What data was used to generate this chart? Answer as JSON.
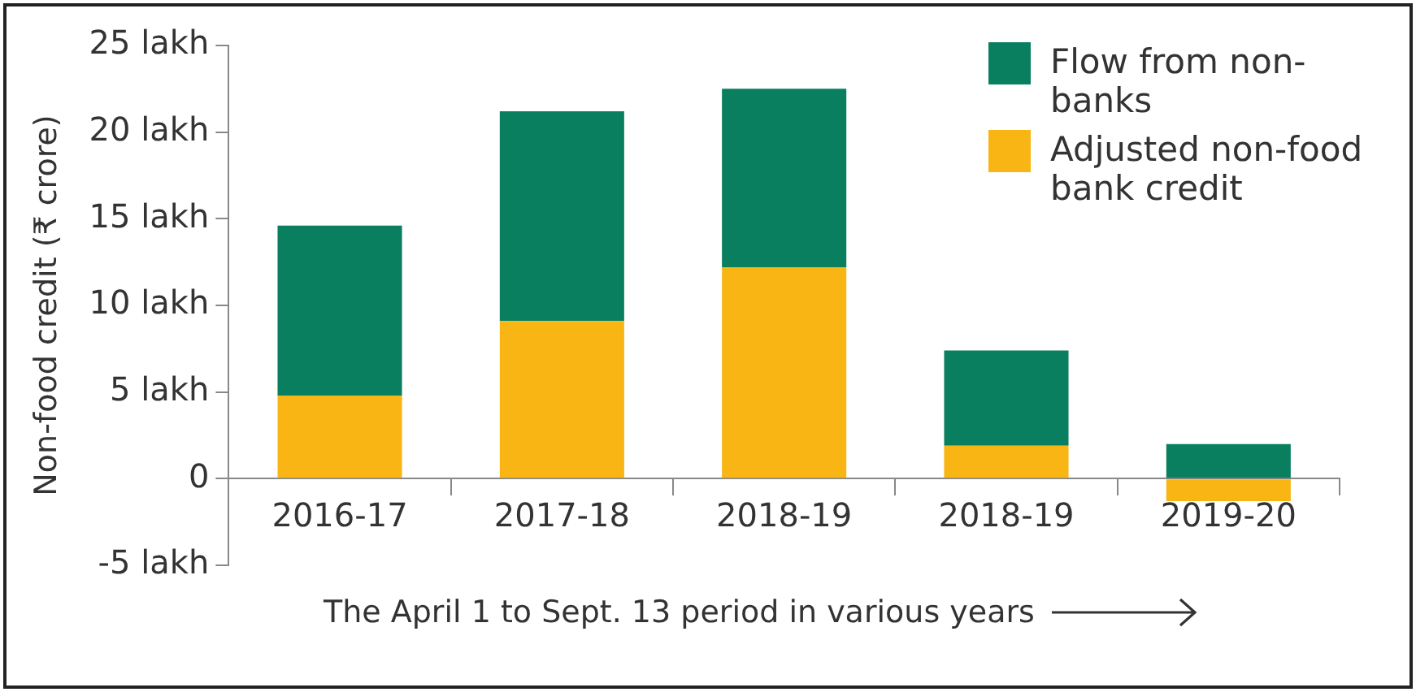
{
  "chart_data": {
    "type": "bar",
    "stacked": true,
    "ylabel": "Non-food credit (₹ crore)",
    "xlabel": "The April 1 to Sept. 13 period in various years",
    "categories": [
      "2016-17",
      "2017-18",
      "2018-19",
      "2018-19",
      "2019-20"
    ],
    "series": [
      {
        "name": "Adjusted non-food bank credit",
        "color": "#f8b514",
        "values": [
          4.8,
          9.1,
          12.2,
          1.9,
          -1.3
        ]
      },
      {
        "name": "Flow from non-banks",
        "color": "#0a7f5f",
        "values": [
          9.8,
          12.1,
          10.3,
          5.5,
          2.0
        ]
      }
    ],
    "ylim": [
      -5,
      25
    ],
    "yticks": [
      {
        "value": -5,
        "label": "-5 lakh"
      },
      0,
      {
        "value": 5,
        "label": "5 lakh"
      },
      {
        "value": 10,
        "label": "10 lakh"
      },
      {
        "value": 15,
        "label": "15 lakh"
      },
      {
        "value": 20,
        "label": "20 lakh"
      },
      {
        "value": 25,
        "label": "25 lakh"
      }
    ],
    "grid": false,
    "legend": "top right"
  }
}
